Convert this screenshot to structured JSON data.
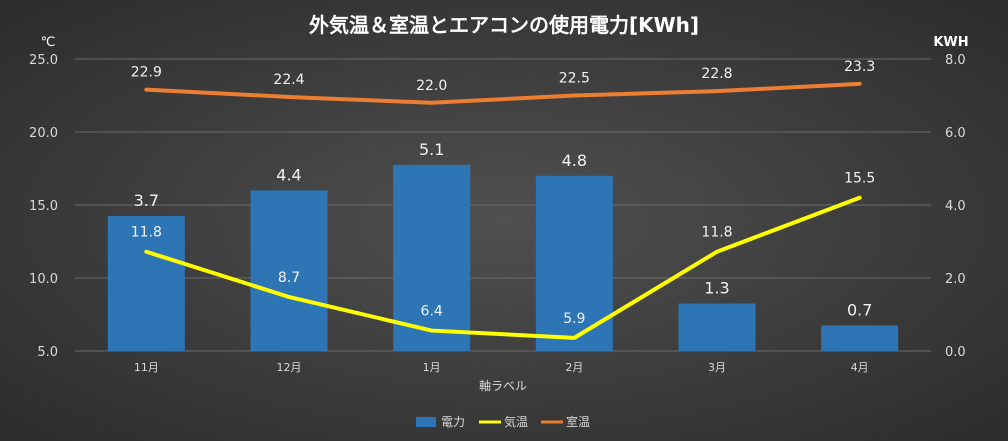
{
  "chart_data": {
    "type": "bar+line",
    "title": "外気温＆室温とエアコンの使用電力[KWh]",
    "categories": [
      "11月",
      "12月",
      "1月",
      "2月",
      "3月",
      "4月"
    ],
    "xlabel": "軸ラベル",
    "y_left_unit": "℃",
    "y_right_unit": "KWH",
    "y_left_range": [
      5.0,
      25.0
    ],
    "y_left_ticks": [
      "5.0",
      "10.0",
      "15.0",
      "20.0",
      "25.0"
    ],
    "y_right_range": [
      0.0,
      8.0
    ],
    "y_right_ticks": [
      "0.0",
      "2.0",
      "4.0",
      "6.0",
      "8.0"
    ],
    "series": [
      {
        "name": "電力",
        "type": "bar",
        "axis": "right",
        "color": "#2e75b6",
        "values": [
          3.7,
          4.4,
          5.1,
          4.8,
          1.3,
          0.7
        ],
        "labels": [
          "3.7",
          "4.4",
          "5.1",
          "4.8",
          "1.3",
          "0.7"
        ]
      },
      {
        "name": "気温",
        "type": "line",
        "axis": "left",
        "color": "#ffff00",
        "values": [
          11.8,
          8.7,
          6.4,
          5.9,
          11.8,
          15.5
        ],
        "labels": [
          "11.8",
          "8.7",
          "6.4",
          "5.9",
          "11.8",
          "15.5"
        ]
      },
      {
        "name": "室温",
        "type": "line",
        "axis": "left",
        "color": "#ed7d31",
        "values": [
          22.9,
          22.4,
          22.0,
          22.5,
          22.8,
          23.3
        ],
        "labels": [
          "22.9",
          "22.4",
          "22.0",
          "22.5",
          "22.8",
          "23.3"
        ]
      }
    ],
    "legend": [
      "電力",
      "気温",
      "室温"
    ],
    "legend_position": "bottom"
  }
}
